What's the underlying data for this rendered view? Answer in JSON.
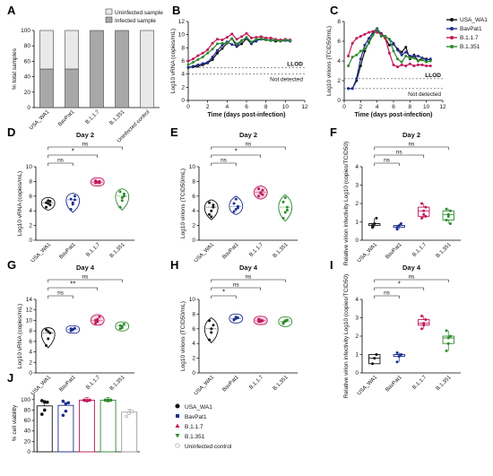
{
  "colors": {
    "usa": "#111111",
    "bav": "#1f2f8f",
    "b117": "#c2185b",
    "b1351": "#2e8b2e",
    "unc": "#9e9e9e"
  },
  "chart_data": [
    {
      "panel": "A",
      "type": "bar",
      "ylabel": "% total samples",
      "ylim": [
        0,
        100
      ],
      "yticks": [
        0,
        20,
        40,
        60,
        80,
        100
      ],
      "categories": [
        "USA_WA1",
        "BavPat1",
        "B.1.1.7",
        "B.1.351",
        "Uninfected control"
      ],
      "series": [
        {
          "name": "Infected sample",
          "values": [
            50,
            50,
            100,
            100,
            0
          ]
        },
        {
          "name": "Uninfected sample",
          "values": [
            50,
            50,
            0,
            0,
            100
          ]
        }
      ],
      "legend": [
        "Uninfected sample",
        "Infected sample"
      ]
    },
    {
      "panel": "B",
      "type": "line",
      "xlabel": "Time (days post-infection)",
      "ylabel": "Log10 vRNA (copies/mL)",
      "xlim": [
        0,
        12
      ],
      "ylim": [
        0,
        12
      ],
      "xticks": [
        0,
        2,
        4,
        6,
        8,
        10,
        12
      ],
      "yticks": [
        0,
        2,
        4,
        6,
        8,
        10,
        12
      ],
      "lines": [
        {
          "label": "LLOD",
          "y": 5
        },
        {
          "label": "Not detected",
          "y": 4
        }
      ],
      "x": [
        0,
        0.5,
        1,
        1.5,
        2,
        2.5,
        3,
        3.5,
        4,
        4.5,
        5,
        5.5,
        6,
        6.5,
        7,
        7.5,
        8,
        8.5,
        9,
        9.5,
        10,
        10.5
      ],
      "series": [
        {
          "name": "USA_WA1",
          "values": [
            5,
            5.1,
            5.2,
            5.4,
            5.7,
            6.2,
            7.2,
            7.9,
            8.7,
            9.4,
            8.2,
            8.6,
            9.4,
            8.6,
            9.2,
            9.3,
            9.2,
            9.2,
            9.0,
            9.1,
            9.2,
            9.1
          ]
        },
        {
          "name": "BavPat1",
          "values": [
            5,
            5.2,
            5.4,
            5.6,
            5.8,
            6.6,
            7.6,
            8.4,
            8.9,
            8.5,
            8.3,
            9.1,
            9.5,
            8.7,
            9.0,
            9.4,
            9.3,
            9.1,
            9.2,
            9.0,
            9.1,
            9.0
          ]
        },
        {
          "name": "B.1.1.7",
          "values": [
            6,
            6.3,
            6.8,
            7.2,
            7.7,
            8.7,
            9.3,
            9.2,
            9.6,
            10.1,
            9.3,
            9.7,
            10.2,
            9.5,
            9.6,
            9.7,
            9.5,
            9.5,
            9.3,
            9.2,
            9.3,
            9.2
          ]
        },
        {
          "name": "B.1.351",
          "values": [
            5.4,
            5.8,
            6.2,
            6.6,
            7.2,
            7.8,
            8.6,
            8.7,
            8.7,
            9.4,
            8.6,
            9.1,
            9.6,
            8.9,
            9.3,
            9.4,
            9.2,
            9.1,
            9.2,
            9.0,
            9.2,
            9.1
          ]
        }
      ]
    },
    {
      "panel": "C",
      "type": "line",
      "xlabel": "Time (days post-infection)",
      "ylabel": "Log10 virions (TCID50/mL)",
      "xlim": [
        0,
        12
      ],
      "ylim": [
        0,
        8
      ],
      "xticks": [
        0,
        2,
        4,
        6,
        8,
        10,
        12
      ],
      "yticks": [
        0,
        2,
        4,
        6,
        8
      ],
      "lines": [
        {
          "label": "LLOD",
          "y": 2.2
        },
        {
          "label": "Not detected",
          "y": 1.2
        }
      ],
      "x": [
        0.5,
        1,
        1.5,
        2,
        2.5,
        3,
        3.5,
        4,
        4.5,
        5,
        5.5,
        6,
        6.5,
        7,
        7.5,
        8,
        8.5,
        9,
        9.5,
        10,
        10.5
      ],
      "series": [
        {
          "name": "USA_WA1",
          "values": [
            1.2,
            1.2,
            2.0,
            3.5,
            5.0,
            5.9,
            6.7,
            7.1,
            6.8,
            6.3,
            5.6,
            5.7,
            5.2,
            4.9,
            5.4,
            4.2,
            4.6,
            4.0,
            4.3,
            4.2,
            4.1
          ]
        },
        {
          "name": "BavPat1",
          "values": [
            1.2,
            1.2,
            2.2,
            4.2,
            5.6,
            6.3,
            6.9,
            7.3,
            6.7,
            6.5,
            6.2,
            5.8,
            5.1,
            4.6,
            4.9,
            4.5,
            4.5,
            4.5,
            4.3,
            4.1,
            4.2
          ]
        },
        {
          "name": "B.1.1.7",
          "values": [
            4.5,
            5.8,
            6.3,
            6.5,
            6.7,
            6.9,
            7.0,
            6.9,
            6.7,
            6.3,
            4.8,
            3.6,
            3.4,
            3.6,
            3.5,
            3.7,
            3.5,
            3.6,
            3.6,
            3.5,
            3.5
          ]
        },
        {
          "name": "B.1.351",
          "values": [
            3.5,
            4.4,
            4.6,
            5.0,
            5.2,
            5.8,
            6.6,
            7.2,
            6.5,
            6.5,
            6.2,
            5.0,
            4.2,
            3.9,
            4.5,
            4.3,
            4.3,
            4.0,
            4.1,
            3.9,
            4.0
          ]
        }
      ]
    },
    {
      "panel": "D",
      "type": "scatter",
      "title": "Day 2",
      "ylabel": "Log10 vRNA (copies/mL)",
      "ylim": [
        0,
        10
      ],
      "yticks": [
        0,
        2,
        4,
        6,
        8,
        10
      ],
      "categories": [
        "USA_WA1",
        "BavPat1",
        "B.1.1.7",
        "B.1.351"
      ],
      "points": [
        [
          4.5,
          5.0,
          5.3,
          5.1,
          5.4,
          4.8
        ],
        [
          4.2,
          5.1,
          5.5,
          5.6,
          4.9,
          6.0
        ],
        [
          7.8,
          7.9,
          8.0,
          8.1,
          7.9,
          7.8
        ],
        [
          4.5,
          5.4,
          6.0,
          6.6,
          5.8,
          6.3
        ]
      ],
      "significance": [
        {
          "pair": [
            0,
            1
          ],
          "label": "ns"
        },
        {
          "pair": [
            0,
            2
          ],
          "label": "*"
        },
        {
          "pair": [
            0,
            3
          ],
          "label": "ns"
        }
      ]
    },
    {
      "panel": "E",
      "type": "scatter",
      "title": "Day 2",
      "ylabel": "Log10 virions (TCID50/mL)",
      "ylim": [
        0,
        10
      ],
      "yticks": [
        0,
        2,
        4,
        6,
        8,
        10
      ],
      "categories": [
        "USA_WA1",
        "BavPat1",
        "B.1.1.7",
        "B.1.351"
      ],
      "points": [
        [
          3.5,
          4.0,
          4.5,
          5.1,
          3.2,
          4.8
        ],
        [
          3.9,
          4.2,
          4.6,
          5.0,
          5.6,
          4.4
        ],
        [
          6.0,
          6.4,
          6.8,
          7.0,
          6.5,
          6.2
        ],
        [
          3.0,
          3.8,
          4.5,
          5.2,
          5.8,
          4.1
        ]
      ],
      "significance": [
        {
          "pair": [
            0,
            1
          ],
          "label": "ns"
        },
        {
          "pair": [
            0,
            2
          ],
          "label": "*"
        },
        {
          "pair": [
            0,
            3
          ],
          "label": "ns"
        }
      ]
    },
    {
      "panel": "F",
      "type": "box",
      "title": "Day 2",
      "ylabel": "Relative virion infectivity Log10 (copies/TCID50)",
      "ylim": [
        0,
        4
      ],
      "yticks": [
        0,
        1,
        2,
        3,
        4
      ],
      "categories": [
        "USA_WA1",
        "BavPat1",
        "B.1.1.7",
        "B.1.351"
      ],
      "points": [
        [
          0.7,
          0.9,
          1.2,
          0.8
        ],
        [
          0.6,
          0.8,
          0.9,
          0.7
        ],
        [
          1.2,
          1.4,
          1.8,
          2.0,
          1.6,
          1.3
        ],
        [
          1.1,
          1.4,
          1.6,
          1.7,
          1.3,
          0.9
        ]
      ],
      "significance": [
        {
          "pair": [
            0,
            1
          ],
          "label": "ns"
        },
        {
          "pair": [
            0,
            2
          ],
          "label": "ns"
        },
        {
          "pair": [
            0,
            3
          ],
          "label": "ns"
        }
      ]
    },
    {
      "panel": "G",
      "type": "scatter",
      "title": "Day 4",
      "ylabel": "Log10 vRNA (copies/mL)",
      "ylim": [
        0,
        14
      ],
      "yticks": [
        0,
        2,
        4,
        6,
        8,
        10,
        12,
        14
      ],
      "categories": [
        "USA_WA1",
        "BavPat1",
        "B.1.1.7",
        "B.1.351"
      ],
      "points": [
        [
          5.2,
          6.5,
          7.6,
          8.2,
          7.9
        ],
        [
          8.0,
          8.3,
          8.5,
          8.4,
          8.2
        ],
        [
          9.5,
          10.2,
          10.7,
          10.0,
          9.8
        ],
        [
          8.4,
          8.9,
          9.3,
          9.0,
          8.6
        ]
      ],
      "significance": [
        {
          "pair": [
            0,
            1
          ],
          "label": "ns"
        },
        {
          "pair": [
            0,
            2
          ],
          "label": "**"
        },
        {
          "pair": [
            0,
            3
          ],
          "label": "ns"
        }
      ]
    },
    {
      "panel": "H",
      "type": "scatter",
      "title": "Day 4",
      "ylabel": "Log10 virions (TCID50/mL)",
      "ylim": [
        0,
        10
      ],
      "yticks": [
        0,
        2,
        4,
        6,
        8,
        10
      ],
      "categories": [
        "USA_WA1",
        "BavPat1",
        "B.1.1.7",
        "B.1.351"
      ],
      "points": [
        [
          4.5,
          5.5,
          6.5,
          7.1,
          6.0
        ],
        [
          7.2,
          7.4,
          7.5,
          7.3,
          7.6
        ],
        [
          7.0,
          7.2,
          7.1,
          7.3,
          7.0
        ],
        [
          6.7,
          7.0,
          7.2,
          6.9,
          7.1
        ]
      ],
      "significance": [
        {
          "pair": [
            0,
            1
          ],
          "label": "*"
        },
        {
          "pair": [
            0,
            2
          ],
          "label": "ns"
        },
        {
          "pair": [
            0,
            3
          ],
          "label": "ns"
        }
      ]
    },
    {
      "panel": "I",
      "type": "box",
      "title": "Day 4",
      "ylabel": "Relative virion infectivity Log10 (copies/TCID50)",
      "ylim": [
        0,
        4
      ],
      "yticks": [
        0,
        1,
        2,
        3,
        4
      ],
      "categories": [
        "USA_WA1",
        "BavPat1",
        "B.1.1.7",
        "B.1.351"
      ],
      "points": [
        [
          0.5,
          0.8,
          1.0
        ],
        [
          0.6,
          0.9,
          1.0,
          1.1
        ],
        [
          2.4,
          2.7,
          2.9,
          3.1,
          2.6
        ],
        [
          1.2,
          1.6,
          2.0,
          2.3,
          1.9
        ]
      ],
      "significance": [
        {
          "pair": [
            0,
            1
          ],
          "label": "ns"
        },
        {
          "pair": [
            0,
            2
          ],
          "label": "*"
        },
        {
          "pair": [
            0,
            3
          ],
          "label": "ns"
        }
      ]
    },
    {
      "panel": "J",
      "type": "bar",
      "ylabel": "% cell viability",
      "ylim": [
        0,
        110
      ],
      "yticks": [
        0,
        20,
        40,
        60,
        80,
        100
      ],
      "categories": [
        "USA_WA1",
        "BavPat1",
        "B.1.1.7",
        "B.1.351",
        "Uninfected control"
      ],
      "values": [
        88,
        89,
        99,
        99,
        76
      ],
      "points": [
        [
          72,
          80,
          95,
          98,
          96
        ],
        [
          70,
          78,
          94,
          97,
          92
        ],
        [
          99,
          98,
          99,
          99,
          98
        ],
        [
          99,
          98,
          99,
          99,
          99
        ],
        [
          68,
          74,
          78
        ]
      ],
      "legend": [
        "USA_WA1",
        "BavPat1",
        "B.1.1.7",
        "B.1.351",
        "Uninfected control"
      ]
    }
  ]
}
